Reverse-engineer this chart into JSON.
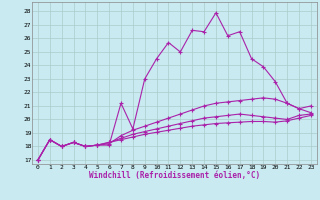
{
  "xlabel": "Windchill (Refroidissement éolien,°C)",
  "bg_color": "#c8eaf0",
  "line_color": "#aa22aa",
  "grid_color": "#aacccc",
  "x_ticks": [
    0,
    1,
    2,
    3,
    4,
    5,
    6,
    7,
    8,
    9,
    10,
    11,
    12,
    13,
    14,
    15,
    16,
    17,
    18,
    19,
    20,
    21,
    22,
    23
  ],
  "y_ticks": [
    17,
    18,
    19,
    20,
    21,
    22,
    23,
    24,
    25,
    26,
    27,
    28
  ],
  "ylim": [
    16.7,
    28.7
  ],
  "xlim": [
    -0.5,
    23.5
  ],
  "lines": [
    [
      17.0,
      18.5,
      18.0,
      18.3,
      18.0,
      18.1,
      18.1,
      21.2,
      19.3,
      23.0,
      24.5,
      25.7,
      25.0,
      26.6,
      26.5,
      27.9,
      26.2,
      26.5,
      24.5,
      23.9,
      22.8,
      21.2,
      20.8,
      21.0
    ],
    [
      17.0,
      18.5,
      18.0,
      18.3,
      18.0,
      18.1,
      18.2,
      18.8,
      19.2,
      19.5,
      19.8,
      20.1,
      20.4,
      20.7,
      21.0,
      21.2,
      21.3,
      21.4,
      21.5,
      21.6,
      21.5,
      21.2,
      20.8,
      20.5
    ],
    [
      17.0,
      18.5,
      18.0,
      18.3,
      18.0,
      18.1,
      18.3,
      18.6,
      18.9,
      19.1,
      19.3,
      19.5,
      19.7,
      19.9,
      20.1,
      20.2,
      20.3,
      20.4,
      20.3,
      20.2,
      20.1,
      20.0,
      20.3,
      20.4
    ],
    [
      17.0,
      18.5,
      18.0,
      18.3,
      18.0,
      18.1,
      18.3,
      18.5,
      18.7,
      18.9,
      19.05,
      19.2,
      19.35,
      19.5,
      19.6,
      19.7,
      19.75,
      19.8,
      19.85,
      19.85,
      19.8,
      19.9,
      20.1,
      20.3
    ]
  ]
}
